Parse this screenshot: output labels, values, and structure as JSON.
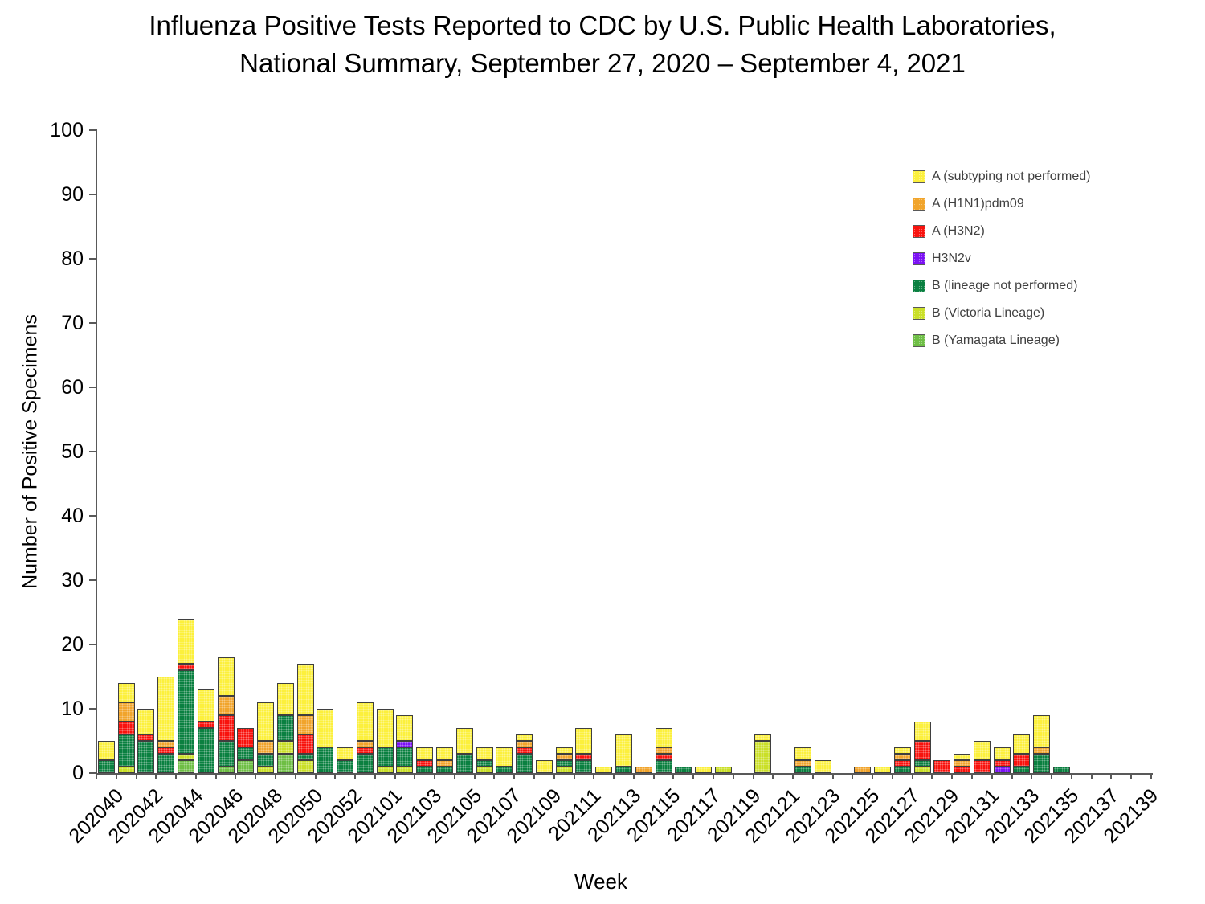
{
  "title": {
    "line1": "Influenza Positive Tests Reported to CDC by U.S. Public Health Laboratories,",
    "line2": "National Summary, September 27, 2020 – September 4, 2021"
  },
  "y_axis": {
    "label": "Number of Positive Specimens",
    "tick_values": [
      0,
      10,
      20,
      30,
      40,
      50,
      60,
      70,
      80,
      90,
      100
    ]
  },
  "x_axis": {
    "label": "Week",
    "tick_labels": [
      "202040",
      "202042",
      "202044",
      "202046",
      "202048",
      "202050",
      "202052",
      "202101",
      "202103",
      "202105",
      "202107",
      "202109",
      "202111",
      "202113",
      "202115",
      "202117",
      "202119",
      "202121",
      "202123",
      "202125",
      "202127",
      "202129",
      "202131",
      "202133",
      "202135",
      "202137",
      "202139"
    ]
  },
  "legend": {
    "items": [
      {
        "label": "A (subtyping not performed)",
        "color": "#FCF03C"
      },
      {
        "label": "A (H1N1)pdm09",
        "color": "#F1A42B"
      },
      {
        "label": "A (H3N2)",
        "color": "#F8120D"
      },
      {
        "label": "H3N2v",
        "color": "#7B11F4"
      },
      {
        "label": "B (lineage not performed)",
        "color": "#0A8040"
      },
      {
        "label": "B (Victoria Lineage)",
        "color": "#CADF27"
      },
      {
        "label": "B (Yamagata Lineage)",
        "color": "#6EBE44"
      }
    ]
  },
  "chart_data": {
    "type": "bar",
    "stacked": true,
    "title": "Influenza Positive Tests Reported to CDC by U.S. Public Health Laboratories, National Summary, September 27, 2020 – September 4, 2021",
    "xlabel": "Week",
    "ylabel": "Number of Positive Specimens",
    "ylim": [
      0,
      100
    ],
    "ytick_step": 10,
    "grid": false,
    "legend_position": "upper right",
    "stack_order_note": "bottom-to-top stacking is the reverse of the series list order",
    "categories": [
      "202040",
      "202041",
      "202042",
      "202043",
      "202044",
      "202045",
      "202046",
      "202047",
      "202048",
      "202049",
      "202050",
      "202051",
      "202052",
      "202053",
      "202101",
      "202102",
      "202103",
      "202104",
      "202105",
      "202106",
      "202107",
      "202108",
      "202109",
      "202110",
      "202111",
      "202112",
      "202113",
      "202114",
      "202115",
      "202116",
      "202117",
      "202118",
      "202119",
      "202120",
      "202121",
      "202122",
      "202123",
      "202124",
      "202125",
      "202126",
      "202127",
      "202128",
      "202129",
      "202130",
      "202131",
      "202132",
      "202133",
      "202134",
      "202135",
      "202136",
      "202137",
      "202138",
      "202139"
    ],
    "series": [
      {
        "name": "A (subtyping not performed)",
        "color": "#FCF03C",
        "values": [
          3,
          3,
          4,
          10,
          7,
          5,
          6,
          0,
          6,
          5,
          8,
          6,
          2,
          6,
          6,
          4,
          2,
          2,
          4,
          2,
          3,
          1,
          2,
          1,
          4,
          1,
          5,
          0,
          3,
          0,
          1,
          0,
          0,
          1,
          0,
          2,
          2,
          0,
          0,
          1,
          1,
          3,
          0,
          1,
          3,
          2,
          3,
          5,
          0,
          0,
          0,
          0,
          0
        ]
      },
      {
        "name": "A (H1N1)pdm09",
        "color": "#F1A42B",
        "values": [
          0,
          3,
          0,
          1,
          0,
          0,
          3,
          0,
          2,
          0,
          3,
          0,
          0,
          1,
          0,
          0,
          0,
          1,
          0,
          0,
          0,
          1,
          0,
          1,
          0,
          0,
          0,
          1,
          1,
          0,
          0,
          0,
          0,
          0,
          0,
          1,
          0,
          0,
          1,
          0,
          1,
          0,
          0,
          1,
          0,
          0,
          0,
          1,
          0,
          0,
          0,
          0,
          0
        ]
      },
      {
        "name": "A (H3N2)",
        "color": "#F8120D",
        "values": [
          0,
          2,
          1,
          1,
          1,
          1,
          4,
          3,
          0,
          0,
          3,
          0,
          0,
          1,
          0,
          0,
          1,
          0,
          0,
          0,
          0,
          1,
          0,
          0,
          1,
          0,
          0,
          0,
          1,
          0,
          0,
          0,
          0,
          0,
          0,
          0,
          0,
          0,
          0,
          0,
          1,
          3,
          2,
          1,
          2,
          1,
          2,
          0,
          0,
          0,
          0,
          0,
          0
        ]
      },
      {
        "name": "H3N2v",
        "color": "#7B11F4",
        "values": [
          0,
          0,
          0,
          0,
          0,
          0,
          0,
          0,
          0,
          0,
          0,
          0,
          0,
          0,
          0,
          1,
          0,
          0,
          0,
          0,
          0,
          0,
          0,
          0,
          0,
          0,
          0,
          0,
          0,
          0,
          0,
          0,
          0,
          0,
          0,
          0,
          0,
          0,
          0,
          0,
          0,
          0,
          0,
          0,
          0,
          1,
          0,
          0,
          0,
          0,
          0,
          0,
          0
        ]
      },
      {
        "name": "B (lineage not performed)",
        "color": "#0A8040",
        "values": [
          2,
          5,
          5,
          3,
          13,
          7,
          4,
          2,
          2,
          4,
          1,
          4,
          2,
          3,
          3,
          3,
          1,
          1,
          3,
          1,
          1,
          3,
          0,
          1,
          2,
          0,
          1,
          0,
          2,
          1,
          0,
          0,
          0,
          0,
          0,
          1,
          0,
          0,
          0,
          0,
          1,
          1,
          0,
          0,
          0,
          0,
          1,
          3,
          1,
          0,
          0,
          0,
          0
        ]
      },
      {
        "name": "B (Victoria Lineage)",
        "color": "#CADF27",
        "values": [
          0,
          1,
          0,
          0,
          1,
          0,
          0,
          0,
          1,
          2,
          2,
          0,
          0,
          0,
          1,
          1,
          0,
          0,
          0,
          1,
          0,
          0,
          0,
          1,
          0,
          0,
          0,
          0,
          0,
          0,
          0,
          1,
          0,
          5,
          0,
          0,
          0,
          0,
          0,
          0,
          0,
          1,
          0,
          0,
          0,
          0,
          0,
          0,
          0,
          0,
          0,
          0,
          0
        ]
      },
      {
        "name": "B (Yamagata Lineage)",
        "color": "#6EBE44",
        "values": [
          0,
          0,
          0,
          0,
          2,
          0,
          1,
          2,
          0,
          3,
          0,
          0,
          0,
          0,
          0,
          0,
          0,
          0,
          0,
          0,
          0,
          0,
          0,
          0,
          0,
          0,
          0,
          0,
          0,
          0,
          0,
          0,
          0,
          0,
          0,
          0,
          0,
          0,
          0,
          0,
          0,
          0,
          0,
          0,
          0,
          0,
          0,
          0,
          0,
          0,
          0,
          0,
          0
        ]
      }
    ]
  },
  "style_colors": {
    "axis": "#595959",
    "bar_outline": "#3f3f3f",
    "legend_text": "#404040",
    "text": "#000000"
  }
}
